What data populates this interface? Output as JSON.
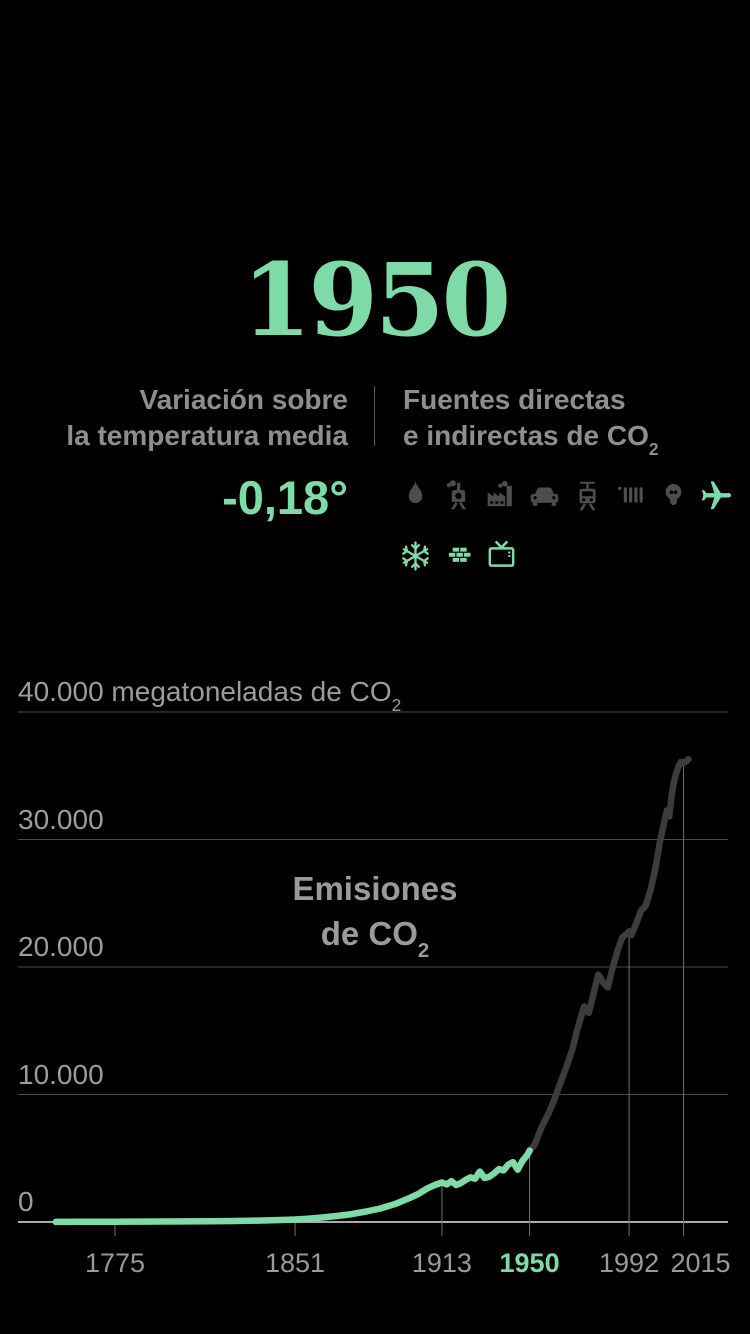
{
  "selected_year": "1950",
  "colors": {
    "accent_green": "#7edba8",
    "heading_gray": "#8e8e8e",
    "axis_gray": "#9c9c9c",
    "grid_gray": "#4a4a4a",
    "baseline_gray": "#ababab",
    "dropline_gray": "#6f6f6f",
    "emissions_past_green": "#7edba8",
    "emissions_after_gray": "#3c3c3c",
    "icon_gray": "#4d4d4d"
  },
  "temperature_panel": {
    "label_line1": "Variación sobre",
    "label_line2": "la temperatura media",
    "value": "-0,18°"
  },
  "sources_panel": {
    "label_line1": "Fuentes directas",
    "label_line2_prefix": "e indirectas de CO",
    "label_subscript": "2",
    "icons_row1": [
      {
        "name": "flame",
        "color": "#4d4d4d"
      },
      {
        "name": "steam-locomotive",
        "color": "#4d4d4d"
      },
      {
        "name": "factory",
        "color": "#4d4d4d"
      },
      {
        "name": "car",
        "color": "#4d4d4d"
      },
      {
        "name": "tram",
        "color": "#4d4d4d"
      },
      {
        "name": "radiator",
        "color": "#4d4d4d"
      },
      {
        "name": "lightbulb",
        "color": "#4d4d4d"
      },
      {
        "name": "airplane",
        "color": "#7edba8"
      }
    ],
    "icons_row2": [
      {
        "name": "snowflake",
        "color": "#7edba8"
      },
      {
        "name": "bricks",
        "color": "#7edba8"
      },
      {
        "name": "tv",
        "color": "#7edba8"
      }
    ]
  },
  "chart_data": {
    "type": "line",
    "title": "Emisiones de CO2",
    "annotation": {
      "line1": "Emisiones",
      "line2_prefix": "de CO",
      "subscript": "2"
    },
    "ylabel": "megatoneladas de CO2",
    "xlim": [
      1750,
      2017
    ],
    "ylim": [
      0,
      40000
    ],
    "grid": true,
    "legend": "none",
    "split_year": 1950,
    "y_ticks": [
      {
        "value": 40000,
        "label": "40.000",
        "suffix": " megatoneladas de CO",
        "suffix_sub": "2"
      },
      {
        "value": 30000,
        "label": "30.000"
      },
      {
        "value": 20000,
        "label": "20.000"
      },
      {
        "value": 10000,
        "label": "10.000"
      },
      {
        "value": 0,
        "label": "0"
      }
    ],
    "x_ticks": [
      {
        "year": 1775,
        "label": "1775",
        "highlight": false
      },
      {
        "year": 1851,
        "label": "1851",
        "highlight": false
      },
      {
        "year": 1913,
        "label": "1913",
        "highlight": false
      },
      {
        "year": 1950,
        "label": "1950",
        "highlight": true
      },
      {
        "year": 1992,
        "label": "1992",
        "highlight": false
      },
      {
        "year": 2015,
        "label": "2015",
        "highlight": false
      }
    ],
    "series": [
      {
        "name": "Emisiones hasta 1950",
        "color": "#7edba8"
      },
      {
        "name": "Emisiones después de 1950",
        "color": "#3c3c3c"
      }
    ],
    "points": [
      [
        1750,
        10
      ],
      [
        1760,
        14
      ],
      [
        1770,
        18
      ],
      [
        1775,
        22
      ],
      [
        1785,
        28
      ],
      [
        1795,
        36
      ],
      [
        1805,
        48
      ],
      [
        1815,
        60
      ],
      [
        1825,
        80
      ],
      [
        1835,
        110
      ],
      [
        1845,
        160
      ],
      [
        1851,
        200
      ],
      [
        1857,
        270
      ],
      [
        1863,
        360
      ],
      [
        1869,
        480
      ],
      [
        1875,
        620
      ],
      [
        1881,
        820
      ],
      [
        1887,
        1060
      ],
      [
        1893,
        1400
      ],
      [
        1899,
        1850
      ],
      [
        1903,
        2200
      ],
      [
        1907,
        2650
      ],
      [
        1910,
        2900
      ],
      [
        1913,
        3100
      ],
      [
        1915,
        2950
      ],
      [
        1917,
        3200
      ],
      [
        1919,
        2900
      ],
      [
        1921,
        3050
      ],
      [
        1923,
        3300
      ],
      [
        1925,
        3500
      ],
      [
        1927,
        3400
      ],
      [
        1929,
        3950
      ],
      [
        1931,
        3450
      ],
      [
        1933,
        3550
      ],
      [
        1935,
        3800
      ],
      [
        1937,
        4150
      ],
      [
        1939,
        4050
      ],
      [
        1941,
        4500
      ],
      [
        1943,
        4700
      ],
      [
        1945,
        4100
      ],
      [
        1947,
        4800
      ],
      [
        1949,
        5250
      ],
      [
        1950,
        5600
      ],
      [
        1952,
        6000
      ],
      [
        1955,
        7400
      ],
      [
        1958,
        8500
      ],
      [
        1960,
        9400
      ],
      [
        1963,
        10900
      ],
      [
        1966,
        12400
      ],
      [
        1968,
        13500
      ],
      [
        1970,
        15000
      ],
      [
        1973,
        16900
      ],
      [
        1975,
        16400
      ],
      [
        1977,
        17900
      ],
      [
        1979,
        19400
      ],
      [
        1981,
        18800
      ],
      [
        1983,
        18400
      ],
      [
        1985,
        19900
      ],
      [
        1987,
        21200
      ],
      [
        1989,
        22300
      ],
      [
        1991,
        22600
      ],
      [
        1992,
        22800
      ],
      [
        1993,
        22500
      ],
      [
        1995,
        23400
      ],
      [
        1997,
        24400
      ],
      [
        1999,
        24800
      ],
      [
        2001,
        26000
      ],
      [
        2003,
        27600
      ],
      [
        2005,
        29800
      ],
      [
        2007,
        31500
      ],
      [
        2008,
        32300
      ],
      [
        2009,
        31800
      ],
      [
        2010,
        33500
      ],
      [
        2011,
        34600
      ],
      [
        2012,
        35300
      ],
      [
        2013,
        35800
      ],
      [
        2014,
        36100
      ],
      [
        2015,
        36000
      ],
      [
        2016,
        36100
      ],
      [
        2017,
        36300
      ]
    ]
  }
}
